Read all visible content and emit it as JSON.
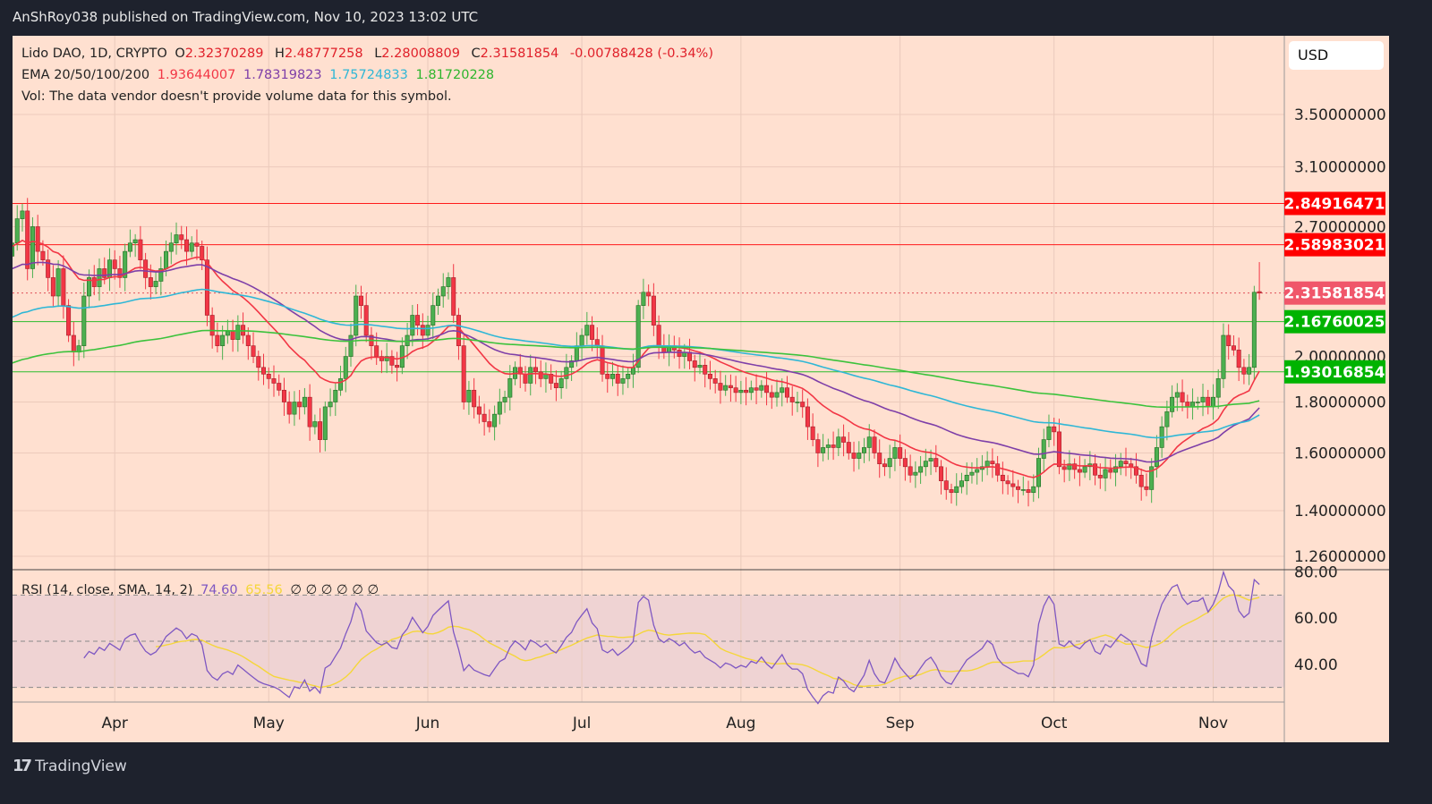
{
  "header": {
    "published": "AnShRoy038 published on TradingView.com, Nov 10, 2023 13:02 UTC"
  },
  "legend": {
    "symbol": "Lido DAO, 1D, CRYPTO",
    "o_label": "O",
    "o": "2.32370289",
    "h_label": "H",
    "h": "2.48777258",
    "l_label": "L",
    "l": "2.28008809",
    "c_label": "C",
    "c": "2.31581854",
    "change": "-0.00788428 (-0.34%)",
    "ema_label": "EMA 20/50/100/200",
    "ema20": "1.93644007",
    "ema50": "1.78319823",
    "ema100": "1.75724833",
    "ema200": "1.81720228",
    "vol": "Vol: The data vendor doesn't provide volume data for this symbol.",
    "rsi_label": "RSI (14, close, SMA, 14, 2)",
    "rsi": "74.60",
    "rsi_sma": "65.56",
    "rsi_extra": "∅ ∅ ∅ ∅ ∅ ∅"
  },
  "currency": "USD",
  "footer": {
    "brand": "TradingView",
    "logo": "17"
  },
  "colors": {
    "background": "#ffe0d0",
    "up": "#4caf50",
    "down": "#f23645",
    "ema20": "#f23645",
    "ema50": "#7e3fa8",
    "ema100": "#2fb7d6",
    "ema200": "#3cc23c",
    "rsi": "#7e57c2",
    "rsi_sma": "#f5d63a",
    "resistance": "#ff0000",
    "support": "#00b300"
  },
  "chart_data": [
    {
      "type": "candlestick",
      "title": "Lido DAO, 1D, CRYPTO",
      "scale": "log",
      "ylim": [
        1.22,
        4.1
      ],
      "y_ticks": [
        "3.50000000",
        "3.10000000",
        "2.70000000",
        "2.00000000",
        "1.80000000",
        "1.60000000",
        "1.40000000",
        "1.26000000"
      ],
      "x_ticks": [
        {
          "label": "Apr",
          "date": "2023-04-01"
        },
        {
          "label": "May",
          "date": "2023-05-01"
        },
        {
          "label": "Jun",
          "date": "2023-06-01"
        },
        {
          "label": "Jul",
          "date": "2023-07-01"
        },
        {
          "label": "Aug",
          "date": "2023-08-01"
        },
        {
          "label": "Sep",
          "date": "2023-09-01"
        },
        {
          "label": "Oct",
          "date": "2023-10-01"
        },
        {
          "label": "Nov",
          "date": "2023-11-01"
        }
      ],
      "start_date": "2023-03-12",
      "end_date": "2023-11-10",
      "closes": [
        2.6,
        2.75,
        2.8,
        2.45,
        2.7,
        2.55,
        2.5,
        2.4,
        2.3,
        2.45,
        2.25,
        2.1,
        2.02,
        2.05,
        2.3,
        2.4,
        2.35,
        2.45,
        2.4,
        2.5,
        2.45,
        2.4,
        2.55,
        2.6,
        2.62,
        2.5,
        2.4,
        2.35,
        2.38,
        2.45,
        2.55,
        2.6,
        2.65,
        2.62,
        2.55,
        2.6,
        2.58,
        2.5,
        2.2,
        2.1,
        2.05,
        2.1,
        2.12,
        2.08,
        2.15,
        2.1,
        2.05,
        2.0,
        1.95,
        1.92,
        1.9,
        1.88,
        1.85,
        1.8,
        1.75,
        1.8,
        1.78,
        1.82,
        1.7,
        1.72,
        1.65,
        1.78,
        1.8,
        1.85,
        1.9,
        2.0,
        2.1,
        2.3,
        2.25,
        2.1,
        2.05,
        2.0,
        1.98,
        2.0,
        1.96,
        1.95,
        2.05,
        2.1,
        2.2,
        2.15,
        2.1,
        2.15,
        2.25,
        2.3,
        2.35,
        2.4,
        2.2,
        2.05,
        1.8,
        1.85,
        1.78,
        1.75,
        1.72,
        1.7,
        1.75,
        1.8,
        1.82,
        1.9,
        1.95,
        1.92,
        1.88,
        1.95,
        1.93,
        1.9,
        1.92,
        1.88,
        1.86,
        1.9,
        1.95,
        1.98,
        2.05,
        2.1,
        2.15,
        2.08,
        2.05,
        1.92,
        1.9,
        1.92,
        1.88,
        1.9,
        1.92,
        1.95,
        2.25,
        2.32,
        2.3,
        2.15,
        2.05,
        2.02,
        2.05,
        2.03,
        2.0,
        2.02,
        1.98,
        1.95,
        1.96,
        1.92,
        1.9,
        1.88,
        1.85,
        1.87,
        1.86,
        1.84,
        1.85,
        1.84,
        1.86,
        1.85,
        1.87,
        1.84,
        1.82,
        1.84,
        1.86,
        1.82,
        1.8,
        1.8,
        1.78,
        1.7,
        1.65,
        1.6,
        1.62,
        1.63,
        1.62,
        1.66,
        1.64,
        1.6,
        1.58,
        1.6,
        1.62,
        1.66,
        1.6,
        1.56,
        1.55,
        1.58,
        1.62,
        1.58,
        1.55,
        1.52,
        1.53,
        1.55,
        1.57,
        1.58,
        1.55,
        1.5,
        1.47,
        1.46,
        1.48,
        1.5,
        1.52,
        1.53,
        1.54,
        1.55,
        1.57,
        1.56,
        1.52,
        1.5,
        1.49,
        1.48,
        1.47,
        1.47,
        1.46,
        1.48,
        1.58,
        1.65,
        1.7,
        1.68,
        1.55,
        1.54,
        1.56,
        1.54,
        1.53,
        1.55,
        1.56,
        1.52,
        1.51,
        1.54,
        1.53,
        1.55,
        1.57,
        1.56,
        1.55,
        1.52,
        1.48,
        1.47,
        1.55,
        1.62,
        1.7,
        1.76,
        1.82,
        1.84,
        1.8,
        1.78,
        1.8,
        1.8,
        1.82,
        1.78,
        1.82,
        1.9,
        2.1,
        2.05,
        2.03,
        1.95,
        1.92,
        1.95,
        2.32,
        2.31581854
      ],
      "last_candle": {
        "open": 2.32370289,
        "high": 2.48777258,
        "low": 2.28008809,
        "close": 2.31581854
      },
      "ema_lengths": [
        20,
        50,
        100,
        200
      ],
      "ema_last": [
        1.93644007,
        1.78319823,
        1.75724833,
        1.81720228
      ],
      "levels": [
        {
          "label": "2.84916471",
          "value": 2.84916471,
          "kind": "resistance"
        },
        {
          "label": "2.58983021",
          "value": 2.58983021,
          "kind": "resistance"
        },
        {
          "label": "2.31581854",
          "value": 2.31581854,
          "kind": "last-price"
        },
        {
          "label": "2.16760025",
          "value": 2.16760025,
          "kind": "support"
        },
        {
          "label": "1.93016854",
          "value": 1.93016854,
          "kind": "support"
        }
      ]
    },
    {
      "type": "line",
      "title": "RSI (14, close, SMA, 14, 2)",
      "ylim": [
        25,
        81
      ],
      "y_ticks": [
        "80.00",
        "60.00",
        "40.00"
      ],
      "bands": [
        70,
        50,
        30
      ],
      "last": {
        "rsi": 74.6,
        "sma": 65.56
      }
    }
  ]
}
